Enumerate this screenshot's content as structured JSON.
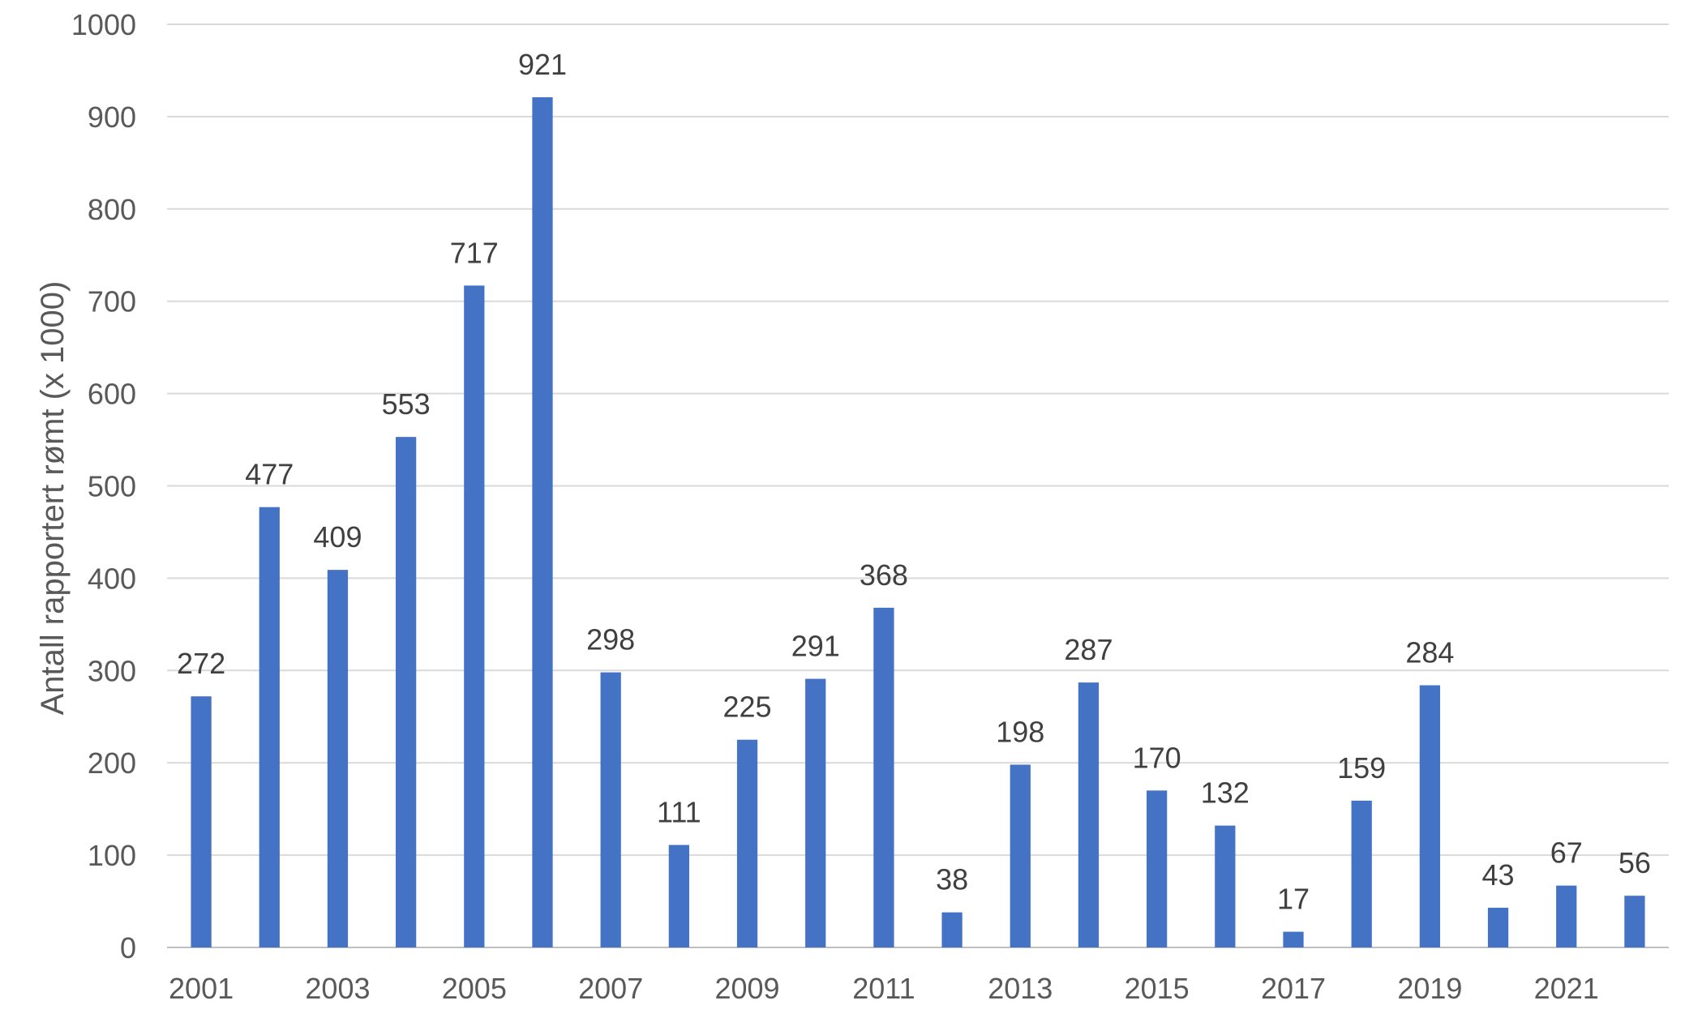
{
  "chart_data": {
    "type": "bar",
    "title": "",
    "xlabel": "",
    "ylabel": "Antall rapportert rømt (x 1000)",
    "ylim": [
      0,
      1000
    ],
    "yticks": [
      0,
      100,
      200,
      300,
      400,
      500,
      600,
      700,
      800,
      900,
      1000
    ],
    "grid": true,
    "data_labels": true,
    "bar_color": "#4472c4",
    "categories": [
      "2001",
      "2002",
      "2003",
      "2004",
      "2005",
      "2006",
      "2007",
      "2008",
      "2009",
      "2010",
      "2011",
      "2012",
      "2013",
      "2014",
      "2015",
      "2016",
      "2017",
      "2018",
      "2019",
      "2020",
      "2021",
      "2022"
    ],
    "visible_x_tick_labels": [
      "2001",
      "2003",
      "2005",
      "2007",
      "2009",
      "2011",
      "2013",
      "2015",
      "2017",
      "2019",
      "2021"
    ],
    "values": [
      272,
      477,
      409,
      553,
      717,
      921,
      298,
      111,
      225,
      291,
      368,
      38,
      198,
      287,
      170,
      132,
      17,
      159,
      284,
      43,
      67,
      56
    ]
  }
}
